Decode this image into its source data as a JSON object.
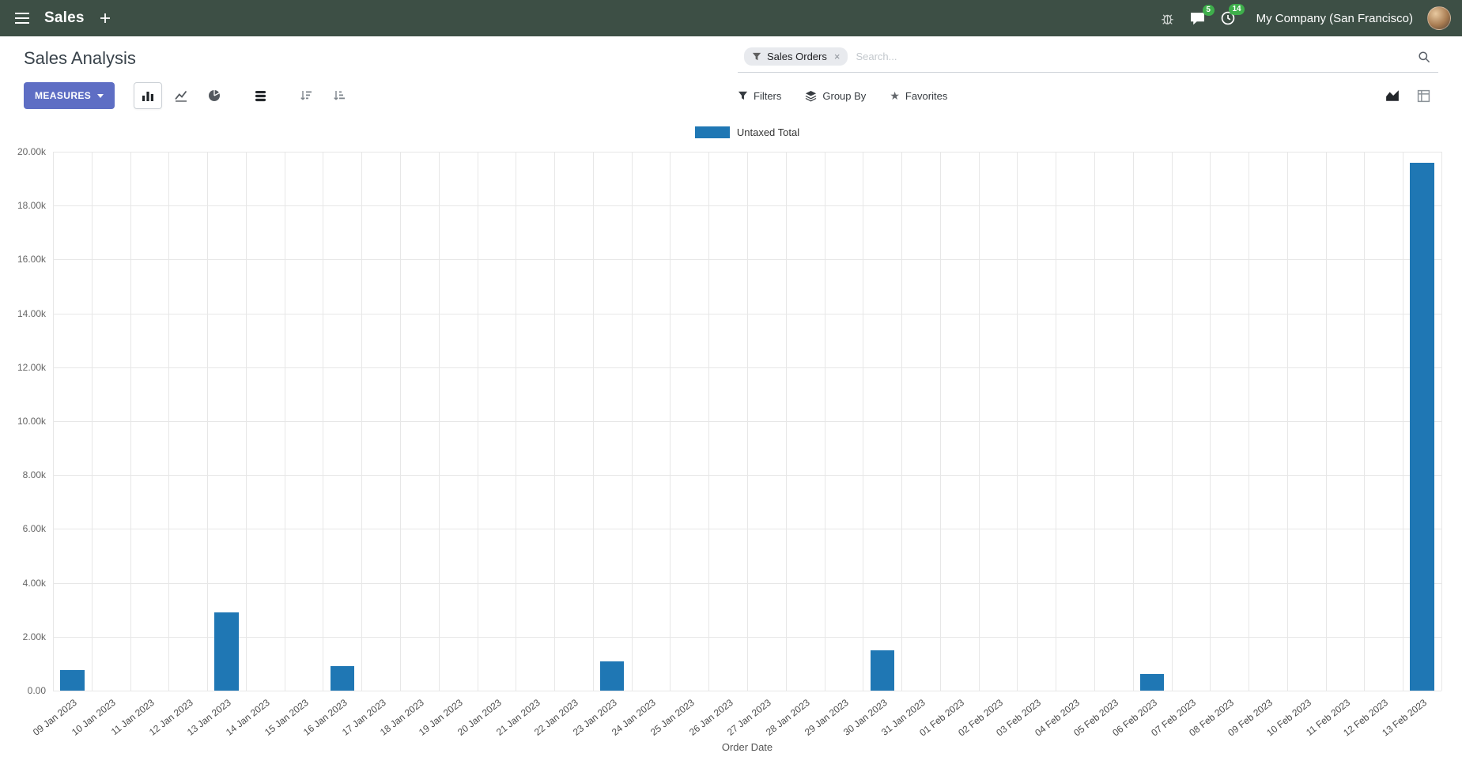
{
  "nav": {
    "app_name": "Sales",
    "company": "My Company (San Francisco)",
    "messages_badge": "5",
    "activities_badge": "14"
  },
  "control_panel": {
    "title": "Sales Analysis",
    "search": {
      "facet": "Sales Orders",
      "facet_remove": "×",
      "placeholder": "Search..."
    },
    "measures_label": "MEASURES",
    "filters_label": "Filters",
    "group_by_label": "Group By",
    "favorites_label": "Favorites"
  },
  "icons": {
    "star": "★"
  },
  "colors": {
    "navbar": "#3d4f45",
    "primary_button": "#5e6ec4",
    "bar": "#1f77b4",
    "badge": "#3eaf4b",
    "facet_bg": "#e8eaee"
  },
  "chart_data": {
    "type": "bar",
    "title": "",
    "xlabel": "Order Date",
    "ylabel": "",
    "ylim": [
      0,
      20000
    ],
    "grid": true,
    "legend_position": "top",
    "ytick_labels": [
      "0.00",
      "2.00k",
      "4.00k",
      "6.00k",
      "8.00k",
      "10.00k",
      "12.00k",
      "14.00k",
      "16.00k",
      "18.00k",
      "20.00k"
    ],
    "categories": [
      "09 Jan 2023",
      "10 Jan 2023",
      "11 Jan 2023",
      "12 Jan 2023",
      "13 Jan 2023",
      "14 Jan 2023",
      "15 Jan 2023",
      "16 Jan 2023",
      "17 Jan 2023",
      "18 Jan 2023",
      "19 Jan 2023",
      "20 Jan 2023",
      "21 Jan 2023",
      "22 Jan 2023",
      "23 Jan 2023",
      "24 Jan 2023",
      "25 Jan 2023",
      "26 Jan 2023",
      "27 Jan 2023",
      "28 Jan 2023",
      "29 Jan 2023",
      "30 Jan 2023",
      "31 Jan 2023",
      "01 Feb 2023",
      "02 Feb 2023",
      "03 Feb 2023",
      "04 Feb 2023",
      "05 Feb 2023",
      "06 Feb 2023",
      "07 Feb 2023",
      "08 Feb 2023",
      "09 Feb 2023",
      "10 Feb 2023",
      "11 Feb 2023",
      "12 Feb 2023",
      "13 Feb 2023"
    ],
    "series": [
      {
        "name": "Untaxed Total",
        "color": "#1f77b4",
        "values": [
          750,
          0,
          0,
          0,
          2900,
          0,
          0,
          900,
          0,
          0,
          0,
          0,
          0,
          0,
          1080,
          0,
          0,
          0,
          0,
          0,
          0,
          1500,
          0,
          0,
          0,
          0,
          0,
          0,
          620,
          0,
          0,
          0,
          0,
          0,
          0,
          19600
        ]
      }
    ]
  }
}
